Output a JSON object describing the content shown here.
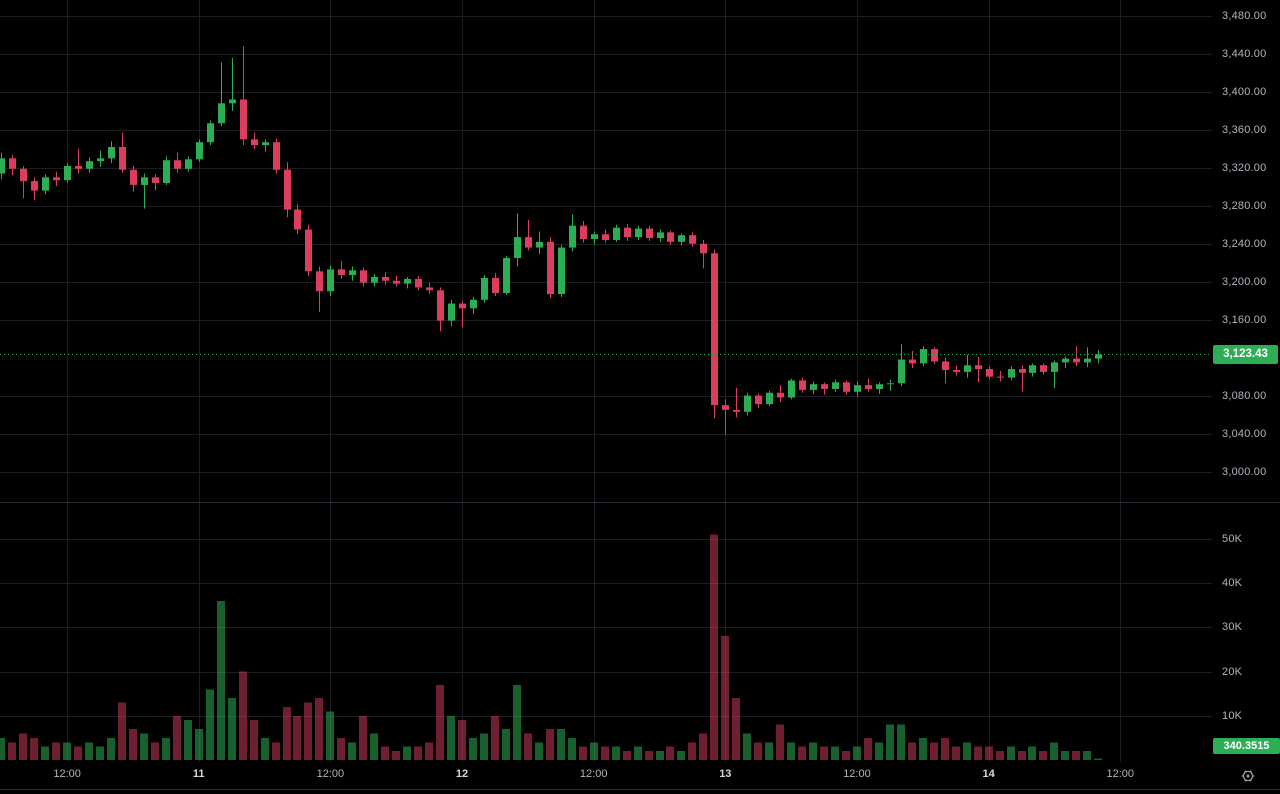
{
  "chart_data": {
    "type": "candlestick",
    "panes": [
      "price",
      "volume"
    ],
    "grid": true,
    "legend_position": "none",
    "price_axis": {
      "ticks": [
        {
          "label": "3,480.00",
          "value": 3480
        },
        {
          "label": "3,440.00",
          "value": 3440
        },
        {
          "label": "3,400.00",
          "value": 3400
        },
        {
          "label": "3,360.00",
          "value": 3360
        },
        {
          "label": "3,320.00",
          "value": 3320
        },
        {
          "label": "3,280.00",
          "value": 3280
        },
        {
          "label": "3,240.00",
          "value": 3240
        },
        {
          "label": "3,200.00",
          "value": 3200
        },
        {
          "label": "3,160.00",
          "value": 3160
        },
        {
          "label": "3,080.00",
          "value": 3080
        },
        {
          "label": "3,040.00",
          "value": 3040
        },
        {
          "label": "3,000.00",
          "value": 3000
        }
      ],
      "range_top": 3480,
      "range_bottom": 3000,
      "current_value": 3123.43,
      "current_label": "3,123.43"
    },
    "volume_axis": {
      "ticks": [
        {
          "label": "50K",
          "value": 50
        },
        {
          "label": "40K",
          "value": 40
        },
        {
          "label": "30K",
          "value": 30
        },
        {
          "label": "20K",
          "value": 20
        },
        {
          "label": "10K",
          "value": 10
        }
      ],
      "current_label": "340.3515"
    },
    "time_axis": {
      "ticks": [
        {
          "label": "12:00",
          "index": 6,
          "bold": false
        },
        {
          "label": "11",
          "index": 18,
          "bold": true
        },
        {
          "label": "12:00",
          "index": 30,
          "bold": false
        },
        {
          "label": "12",
          "index": 42,
          "bold": true
        },
        {
          "label": "12:00",
          "index": 54,
          "bold": false
        },
        {
          "label": "13",
          "index": 66,
          "bold": true
        },
        {
          "label": "12:00",
          "index": 78,
          "bold": false
        },
        {
          "label": "14",
          "index": 90,
          "bold": true
        },
        {
          "label": "12:00",
          "index": 102,
          "bold": false
        }
      ]
    },
    "candles": [
      [
        3314,
        3336,
        3308,
        3330
      ],
      [
        3330,
        3334,
        3312,
        3319
      ],
      [
        3319,
        3322,
        3288,
        3306
      ],
      [
        3306,
        3310,
        3286,
        3296
      ],
      [
        3296,
        3313,
        3292,
        3310
      ],
      [
        3310,
        3316,
        3301,
        3307
      ],
      [
        3307,
        3325,
        3304,
        3322
      ],
      [
        3322,
        3340,
        3314,
        3319
      ],
      [
        3319,
        3331,
        3315,
        3327
      ],
      [
        3327,
        3338,
        3321,
        3330
      ],
      [
        3330,
        3348,
        3325,
        3342
      ],
      [
        3342,
        3357,
        3315,
        3318
      ],
      [
        3318,
        3322,
        3295,
        3302
      ],
      [
        3302,
        3314,
        3277,
        3310
      ],
      [
        3310,
        3313,
        3296,
        3304
      ],
      [
        3304,
        3332,
        3302,
        3328
      ],
      [
        3328,
        3336,
        3315,
        3319
      ],
      [
        3319,
        3332,
        3316,
        3329
      ],
      [
        3329,
        3350,
        3326,
        3347
      ],
      [
        3347,
        3370,
        3344,
        3367
      ],
      [
        3367,
        3431,
        3364,
        3388
      ],
      [
        3388,
        3436,
        3380,
        3392
      ],
      [
        3392,
        3448,
        3344,
        3350
      ],
      [
        3350,
        3357,
        3340,
        3344
      ],
      [
        3344,
        3350,
        3337,
        3347
      ],
      [
        3347,
        3351,
        3314,
        3318
      ],
      [
        3318,
        3326,
        3268,
        3276
      ],
      [
        3276,
        3282,
        3250,
        3255
      ],
      [
        3255,
        3260,
        3206,
        3211
      ],
      [
        3211,
        3216,
        3168,
        3190
      ],
      [
        3190,
        3217,
        3185,
        3213
      ],
      [
        3213,
        3222,
        3203,
        3207
      ],
      [
        3207,
        3216,
        3201,
        3212
      ],
      [
        3212,
        3215,
        3195,
        3199
      ],
      [
        3199,
        3208,
        3195,
        3205
      ],
      [
        3205,
        3210,
        3197,
        3201
      ],
      [
        3201,
        3206,
        3195,
        3198
      ],
      [
        3198,
        3205,
        3193,
        3203
      ],
      [
        3203,
        3206,
        3191,
        3194
      ],
      [
        3194,
        3199,
        3187,
        3191
      ],
      [
        3191,
        3194,
        3148,
        3159
      ],
      [
        3159,
        3181,
        3153,
        3177
      ],
      [
        3177,
        3180,
        3152,
        3172
      ],
      [
        3172,
        3184,
        3166,
        3181
      ],
      [
        3181,
        3207,
        3178,
        3204
      ],
      [
        3204,
        3209,
        3185,
        3188
      ],
      [
        3188,
        3227,
        3186,
        3225
      ],
      [
        3225,
        3272,
        3216,
        3247
      ],
      [
        3247,
        3265,
        3233,
        3236
      ],
      [
        3236,
        3253,
        3229,
        3242
      ],
      [
        3242,
        3247,
        3183,
        3187
      ],
      [
        3187,
        3239,
        3184,
        3236
      ],
      [
        3236,
        3271,
        3232,
        3259
      ],
      [
        3259,
        3264,
        3241,
        3245
      ],
      [
        3245,
        3253,
        3239,
        3250
      ],
      [
        3250,
        3255,
        3241,
        3244
      ],
      [
        3244,
        3260,
        3242,
        3257
      ],
      [
        3257,
        3261,
        3243,
        3247
      ],
      [
        3247,
        3259,
        3244,
        3256
      ],
      [
        3256,
        3259,
        3243,
        3246
      ],
      [
        3246,
        3255,
        3242,
        3252
      ],
      [
        3252,
        3254,
        3239,
        3242
      ],
      [
        3242,
        3251,
        3238,
        3249
      ],
      [
        3249,
        3252,
        3237,
        3240
      ],
      [
        3240,
        3244,
        3214,
        3230
      ],
      [
        3230,
        3234,
        3056,
        3070
      ],
      [
        3070,
        3076,
        3039,
        3065
      ],
      [
        3065,
        3088,
        3057,
        3063
      ],
      [
        3063,
        3083,
        3059,
        3080
      ],
      [
        3080,
        3082,
        3067,
        3071
      ],
      [
        3071,
        3085,
        3069,
        3083
      ],
      [
        3083,
        3091,
        3073,
        3078
      ],
      [
        3078,
        3098,
        3076,
        3096
      ],
      [
        3096,
        3099,
        3083,
        3086
      ],
      [
        3086,
        3095,
        3082,
        3092
      ],
      [
        3092,
        3094,
        3081,
        3087
      ],
      [
        3087,
        3097,
        3084,
        3094
      ],
      [
        3094,
        3096,
        3081,
        3084
      ],
      [
        3084,
        3095,
        3079,
        3091
      ],
      [
        3091,
        3098,
        3084,
        3087
      ],
      [
        3087,
        3094,
        3082,
        3092
      ],
      [
        3092,
        3097,
        3085,
        3093
      ],
      [
        3093,
        3134,
        3090,
        3118
      ],
      [
        3118,
        3127,
        3109,
        3114
      ],
      [
        3114,
        3132,
        3111,
        3129
      ],
      [
        3129,
        3131,
        3113,
        3116
      ],
      [
        3116,
        3120,
        3093,
        3107
      ],
      [
        3107,
        3112,
        3101,
        3105
      ],
      [
        3105,
        3123,
        3099,
        3112
      ],
      [
        3112,
        3121,
        3094,
        3108
      ],
      [
        3108,
        3111,
        3097,
        3100
      ],
      [
        3100,
        3106,
        3095,
        3099
      ],
      [
        3099,
        3111,
        3096,
        3108
      ],
      [
        3108,
        3112,
        3084,
        3104
      ],
      [
        3104,
        3114,
        3100,
        3112
      ],
      [
        3112,
        3114,
        3102,
        3105
      ],
      [
        3105,
        3117,
        3088,
        3115
      ],
      [
        3115,
        3121,
        3109,
        3119
      ],
      [
        3119,
        3132,
        3111,
        3115
      ],
      [
        3115,
        3131,
        3110,
        3119
      ],
      [
        3119,
        3128,
        3114,
        3123.43
      ]
    ],
    "volumes_k": [
      5,
      4,
      6,
      5,
      3,
      4,
      4,
      3,
      4,
      3,
      5,
      13,
      7,
      6,
      4,
      5,
      10,
      9,
      7,
      16,
      36,
      14,
      20,
      9,
      5,
      4,
      12,
      10,
      13,
      14,
      11,
      5,
      4,
      10,
      6,
      3,
      2,
      3,
      3,
      4,
      17,
      10,
      9,
      5,
      6,
      10,
      7,
      17,
      6,
      4,
      7,
      7,
      5,
      3,
      4,
      3,
      3,
      2,
      3,
      2,
      2,
      3,
      2,
      4,
      6,
      51,
      28,
      14,
      6,
      4,
      4,
      8,
      4,
      3,
      4,
      3,
      3,
      2,
      3,
      5,
      4,
      8,
      8,
      4,
      5,
      4,
      5,
      3,
      4,
      3,
      3,
      2,
      3,
      2,
      3,
      2,
      4,
      2,
      2,
      2,
      0.34
    ]
  },
  "colors": {
    "background": "#000000",
    "grid": "#1c1e24",
    "candle_up": "#2CAF54",
    "candle_down": "#DB3E5F",
    "volume_up": "rgba(46,175,85,0.55)",
    "volume_down": "rgba(219,62,95,0.5)",
    "axis_text": "#b2b5be",
    "axis_text_bold": "#d6d8dd",
    "label_bg_up": "#2CAF54",
    "label_text": "#ffffff",
    "divider": "#2b2e36",
    "icon": "#9a9da6"
  },
  "icons": {
    "settings": "gear-icon"
  }
}
